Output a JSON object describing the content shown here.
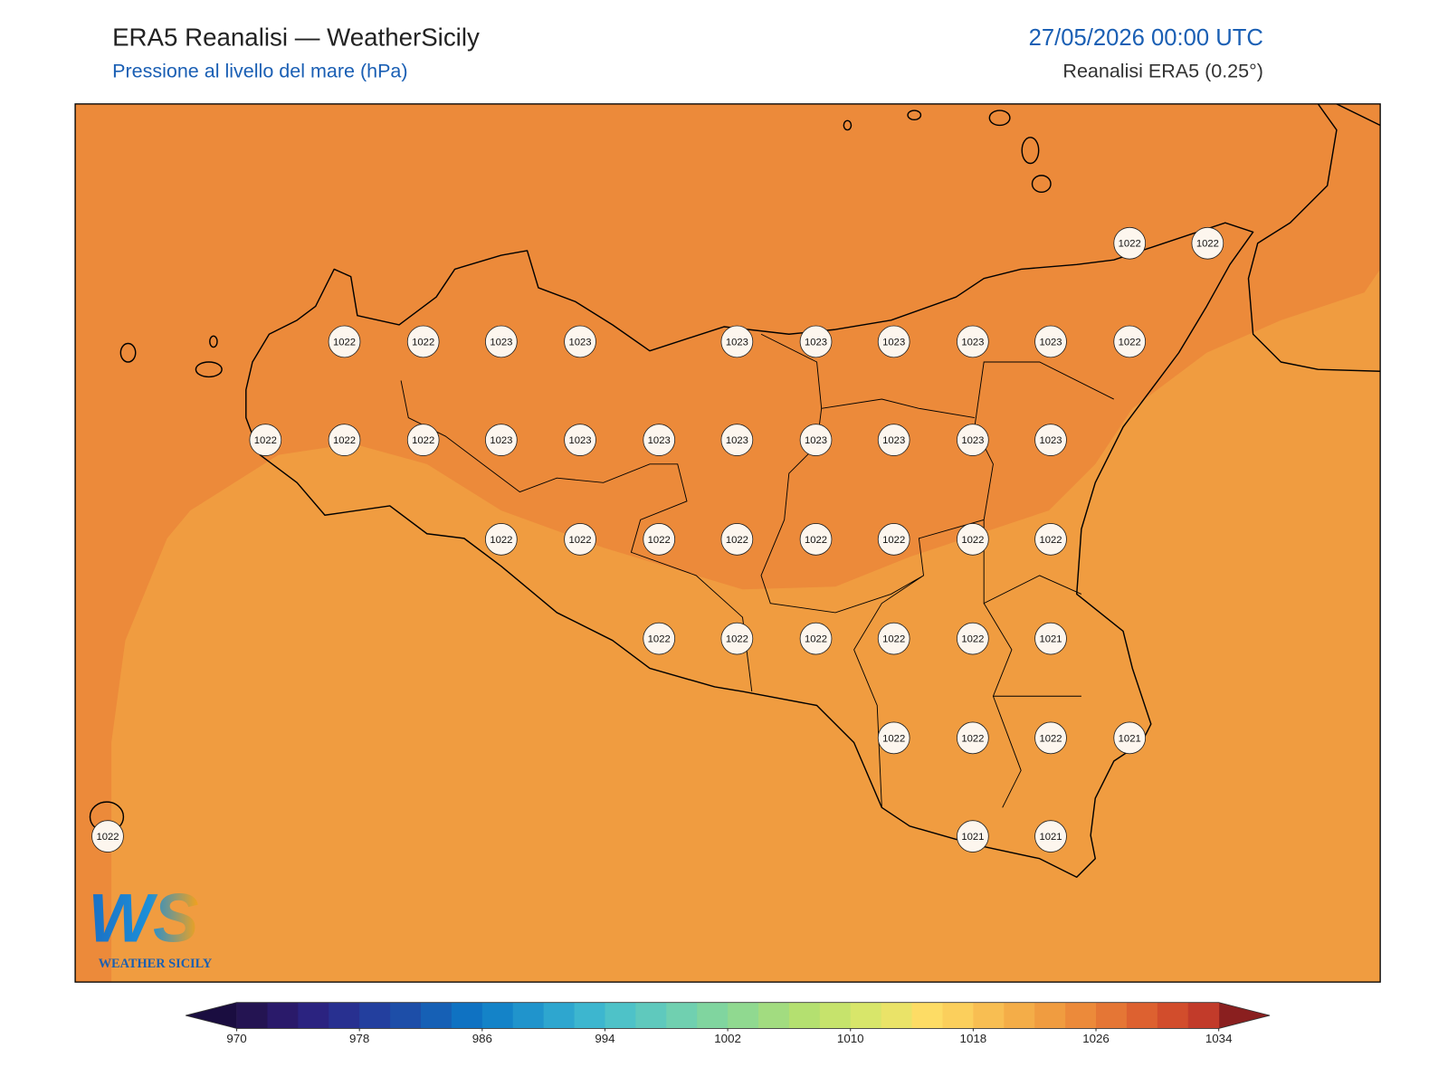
{
  "header": {
    "title": "ERA5 Reanalisi — WeatherSicily",
    "subtitle": "Pressione al livello del mare (hPa)",
    "datetime": "27/05/2026 00:00 UTC",
    "source": "Reanalisi ERA5 (0.25°)"
  },
  "map": {
    "stations": [
      1022,
      1022,
      1022,
      1022,
      1023,
      1023,
      1023,
      1023,
      1023,
      1023,
      1023,
      1022,
      1022,
      1022,
      1022,
      1023,
      1023,
      1023,
      1023,
      1023,
      1023,
      1023,
      1023,
      1022,
      1022,
      1022,
      1022,
      1022,
      1022,
      1022,
      1022,
      1022,
      1022,
      1022,
      1022,
      1022,
      1021,
      1022,
      1022,
      1022,
      1021,
      1022,
      1021,
      1021
    ]
  },
  "colorbar": {
    "limits": [
      970,
      1034
    ],
    "ticks": [
      970,
      978,
      986,
      994,
      1002,
      1010,
      1018,
      1026,
      1034
    ],
    "colors": [
      "#241452",
      "#2a1a6a",
      "#2b2380",
      "#283090",
      "#233f9e",
      "#1d4ea8",
      "#1660b5",
      "#0f72c2",
      "#1483c8",
      "#2094cc",
      "#2ea6cf",
      "#3db6cf",
      "#4ec2c8",
      "#5fc9bd",
      "#70d0b0",
      "#80d59f",
      "#90d990",
      "#a2dc80",
      "#b4e070",
      "#c6e36c",
      "#d8e66a",
      "#eae368",
      "#fddc65",
      "#fbcf5c",
      "#f8be52",
      "#f4ad48",
      "#f09c40",
      "#ec8a3a",
      "#e57635",
      "#dd6130",
      "#d24d2c",
      "#c23b2a"
    ],
    "under_color": "#1a0d40",
    "over_color": "#8a1f1f"
  },
  "logo": {
    "mark": "WS",
    "name": "WEATHER SICILY"
  }
}
